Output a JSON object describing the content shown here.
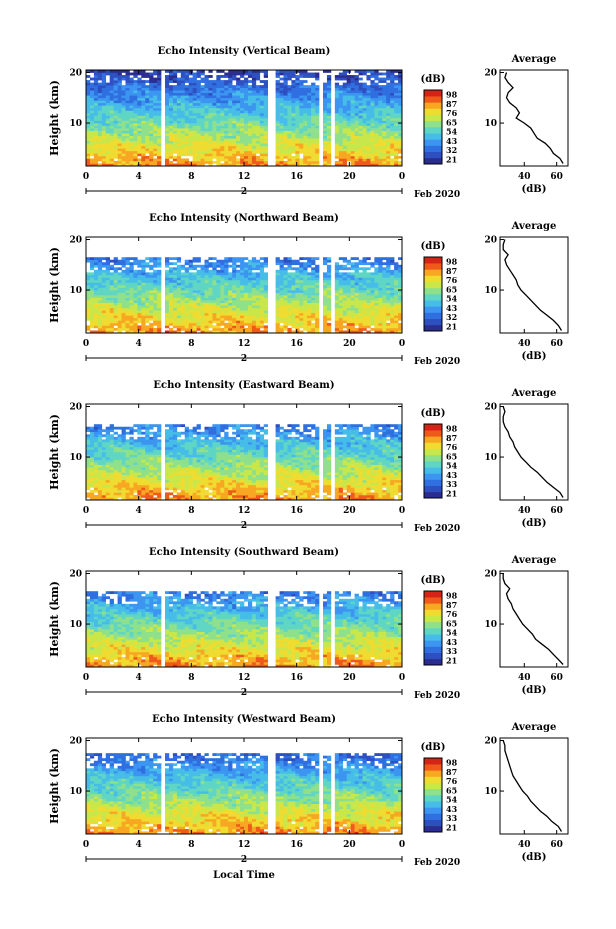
{
  "xaxis_label": "Local Time",
  "date_label": "Feb 2020",
  "day_marker": "2",
  "colorbar_unit": "(dB)",
  "avg_title": "Average",
  "avg_xlabel": "(dB)",
  "colors": [
    "#2a2d8f",
    "#2d4fc0",
    "#2f6fe0",
    "#3c95f0",
    "#46bde8",
    "#5fd6c4",
    "#8fe08a",
    "#c8e74a",
    "#f0dc30",
    "#f8a722",
    "#ef5a1a",
    "#d42418"
  ],
  "chart_data": [
    {
      "type": "heatmap",
      "title": "Echo Intensity (Vertical Beam)",
      "ylabel": "Height (km)",
      "x_ticks": [
        "0",
        "4",
        "8",
        "12",
        "16",
        "20",
        "0"
      ],
      "x_range": [
        0,
        24
      ],
      "y_ticks": [
        "10",
        "20"
      ],
      "y_range": [
        1.5,
        20.5
      ],
      "colorbar_ticks": [
        "21",
        "32",
        "43",
        "54",
        "65",
        "76",
        "87",
        "98"
      ],
      "data_gaps_hours": [
        [
          5.6,
          6.0
        ],
        [
          13.8,
          14.3
        ],
        [
          17.6,
          18.0
        ],
        [
          18.6,
          19.0
        ]
      ],
      "echo_top_km": 20.5,
      "avg_profile": {
        "x_ticks": [
          "40",
          "60"
        ],
        "x_range": [
          25,
          67
        ],
        "y_ticks": [
          "10",
          "20"
        ],
        "y_range": [
          1.5,
          20.5
        ],
        "height_km": [
          2,
          3,
          4,
          5,
          6,
          7,
          8,
          9,
          10,
          11,
          12,
          13,
          14,
          15,
          16,
          17,
          18,
          19,
          20
        ],
        "db": [
          64,
          62,
          58,
          56,
          53,
          48,
          46,
          44,
          40,
          35,
          37,
          35,
          31,
          29,
          30,
          33,
          30,
          28,
          29
        ]
      }
    },
    {
      "type": "heatmap",
      "title": "Echo Intensity (Northward Beam)",
      "ylabel": "Height (km)",
      "x_ticks": [
        "0",
        "4",
        "8",
        "12",
        "16",
        "20",
        "0"
      ],
      "x_range": [
        0,
        24
      ],
      "y_ticks": [
        "10",
        "20"
      ],
      "y_range": [
        1.5,
        20.5
      ],
      "colorbar_ticks": [
        "21",
        "32",
        "43",
        "54",
        "65",
        "76",
        "87",
        "98"
      ],
      "data_gaps_hours": [
        [
          5.6,
          6.0
        ],
        [
          13.8,
          14.3
        ],
        [
          17.6,
          18.0
        ],
        [
          18.6,
          19.0
        ]
      ],
      "echo_top_km": 16.5,
      "avg_profile": {
        "x_ticks": [
          "40",
          "60"
        ],
        "x_range": [
          25,
          67
        ],
        "y_ticks": [
          "10",
          "20"
        ],
        "y_range": [
          1.5,
          20.5
        ],
        "height_km": [
          2,
          3,
          4,
          5,
          6,
          7,
          8,
          9,
          10,
          11,
          12,
          13,
          14,
          15,
          16,
          17,
          18,
          19,
          20
        ],
        "db": [
          63,
          61,
          58,
          54,
          50,
          47,
          44,
          41,
          38,
          36,
          35,
          33,
          31,
          29,
          28,
          30,
          27,
          27,
          28
        ]
      }
    },
    {
      "type": "heatmap",
      "title": "Echo Intensity (Eastward Beam)",
      "ylabel": "Height (km)",
      "x_ticks": [
        "0",
        "4",
        "8",
        "12",
        "16",
        "20",
        "0"
      ],
      "x_range": [
        0,
        24
      ],
      "y_ticks": [
        "10",
        "20"
      ],
      "y_range": [
        1.5,
        20.5
      ],
      "colorbar_ticks": [
        "21",
        "33",
        "43",
        "54",
        "65",
        "76",
        "87",
        "98"
      ],
      "data_gaps_hours": [
        [
          5.6,
          6.0
        ],
        [
          13.8,
          14.3
        ],
        [
          17.6,
          18.0
        ],
        [
          18.6,
          19.0
        ]
      ],
      "echo_top_km": 16.5,
      "avg_profile": {
        "x_ticks": [
          "40",
          "60"
        ],
        "x_range": [
          25,
          67
        ],
        "y_ticks": [
          "10",
          "20"
        ],
        "y_range": [
          1.5,
          20.5
        ],
        "height_km": [
          2,
          3,
          4,
          5,
          6,
          7,
          8,
          9,
          10,
          11,
          12,
          13,
          14,
          15,
          16,
          17,
          18,
          19,
          20
        ],
        "db": [
          64,
          62,
          58,
          54,
          51,
          48,
          44,
          41,
          38,
          36,
          34,
          33,
          31,
          30,
          28,
          27,
          27,
          28,
          27
        ]
      }
    },
    {
      "type": "heatmap",
      "title": "Echo Intensity (Southward Beam)",
      "ylabel": "Height (km)",
      "x_ticks": [
        "0",
        "4",
        "8",
        "12",
        "16",
        "20",
        "0"
      ],
      "x_range": [
        0,
        24
      ],
      "y_ticks": [
        "10",
        "20"
      ],
      "y_range": [
        1.5,
        20.5
      ],
      "colorbar_ticks": [
        "21",
        "33",
        "43",
        "54",
        "65",
        "76",
        "87",
        "98"
      ],
      "data_gaps_hours": [
        [
          5.6,
          6.0
        ],
        [
          13.8,
          14.3
        ],
        [
          17.6,
          18.0
        ],
        [
          18.6,
          19.0
        ]
      ],
      "echo_top_km": 16.5,
      "avg_profile": {
        "x_ticks": [
          "40",
          "60"
        ],
        "x_range": [
          25,
          67
        ],
        "y_ticks": [
          "10",
          "20"
        ],
        "y_range": [
          1.5,
          20.5
        ],
        "height_km": [
          2,
          3,
          4,
          5,
          6,
          7,
          8,
          9,
          10,
          11,
          12,
          13,
          14,
          15,
          16,
          17,
          18,
          19,
          20
        ],
        "db": [
          64,
          61,
          58,
          55,
          51,
          47,
          45,
          42,
          39,
          37,
          35,
          33,
          32,
          30,
          29,
          31,
          28,
          27,
          27
        ]
      }
    },
    {
      "type": "heatmap",
      "title": "Echo Intensity (Westward Beam)",
      "ylabel": "Height (km)",
      "x_ticks": [
        "0",
        "4",
        "8",
        "12",
        "16",
        "20",
        "0"
      ],
      "x_range": [
        0,
        24
      ],
      "y_ticks": [
        "10",
        "20"
      ],
      "y_range": [
        1.5,
        20.5
      ],
      "colorbar_ticks": [
        "21",
        "33",
        "43",
        "54",
        "65",
        "76",
        "87",
        "98"
      ],
      "data_gaps_hours": [
        [
          5.6,
          6.0
        ],
        [
          13.8,
          14.3
        ],
        [
          17.6,
          18.0
        ],
        [
          18.6,
          19.0
        ]
      ],
      "echo_top_km": 17.5,
      "avg_profile": {
        "x_ticks": [
          "40",
          "60"
        ],
        "x_range": [
          25,
          67
        ],
        "y_ticks": [
          "10",
          "20"
        ],
        "y_range": [
          1.5,
          20.5
        ],
        "height_km": [
          2,
          3,
          4,
          5,
          6,
          7,
          8,
          9,
          10,
          11,
          12,
          13,
          14,
          15,
          16,
          17,
          18,
          19,
          20
        ],
        "db": [
          63,
          61,
          57,
          54,
          50,
          47,
          44,
          42,
          39,
          37,
          35,
          33,
          32,
          31,
          30,
          29,
          28,
          28,
          27
        ]
      }
    }
  ]
}
